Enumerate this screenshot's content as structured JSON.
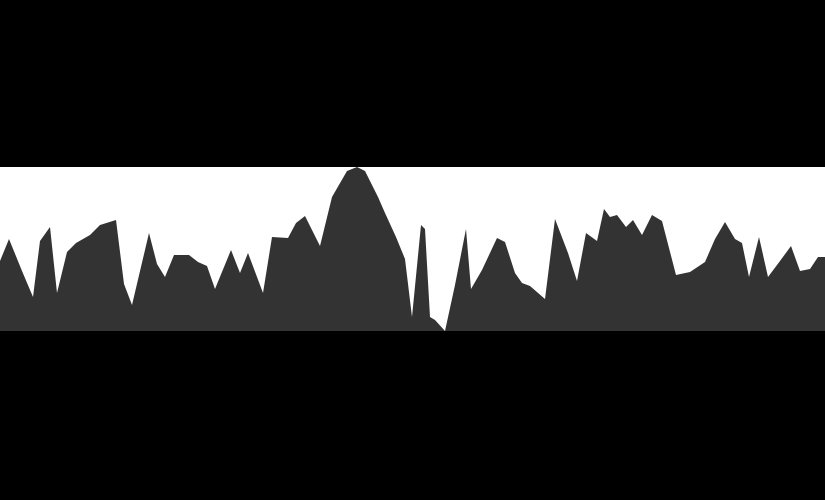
{
  "colors": {
    "page_background": "#000000",
    "plot_background": "#ffffff",
    "fill": "#333333"
  },
  "chart_data": {
    "type": "area",
    "title": "",
    "xlabel": "",
    "ylabel": "",
    "grid": false,
    "legend": "none",
    "xlim": [
      0,
      825
    ],
    "ylim": [
      0,
      164
    ],
    "x": [
      0,
      9,
      22,
      33,
      40,
      50,
      57,
      67,
      76,
      90,
      100,
      116,
      124,
      132,
      149,
      157,
      165,
      174,
      189,
      198,
      207,
      215,
      231,
      240,
      248,
      263,
      272,
      288,
      296,
      305,
      320,
      332,
      347,
      357,
      365,
      372,
      378,
      385,
      396,
      405,
      412,
      421,
      425,
      430,
      435,
      445,
      455,
      466,
      471,
      482,
      497,
      505,
      515,
      522,
      530,
      545,
      555,
      568,
      577,
      586,
      597,
      604,
      610,
      617,
      626,
      633,
      642,
      652,
      662,
      676,
      690,
      705,
      715,
      725,
      735,
      742,
      749,
      759,
      768,
      780,
      791,
      800,
      810,
      818,
      825
    ],
    "values": [
      70,
      92,
      60,
      34,
      90,
      104,
      38,
      79,
      88,
      96,
      106,
      111,
      47,
      26,
      98,
      67,
      54,
      76,
      76,
      69,
      65,
      42,
      81,
      58,
      78,
      38,
      94,
      93,
      108,
      115,
      85,
      134,
      160,
      164,
      160,
      146,
      134,
      118,
      94,
      72,
      14,
      106,
      102,
      14,
      11,
      0,
      46,
      102,
      42,
      61,
      93,
      89,
      58,
      48,
      45,
      32,
      112,
      78,
      50,
      98,
      90,
      122,
      114,
      116,
      104,
      111,
      96,
      116,
      110,
      56,
      59,
      69,
      92,
      109,
      92,
      88,
      54,
      94,
      54,
      70,
      85,
      60,
      62,
      74,
      74
    ]
  }
}
